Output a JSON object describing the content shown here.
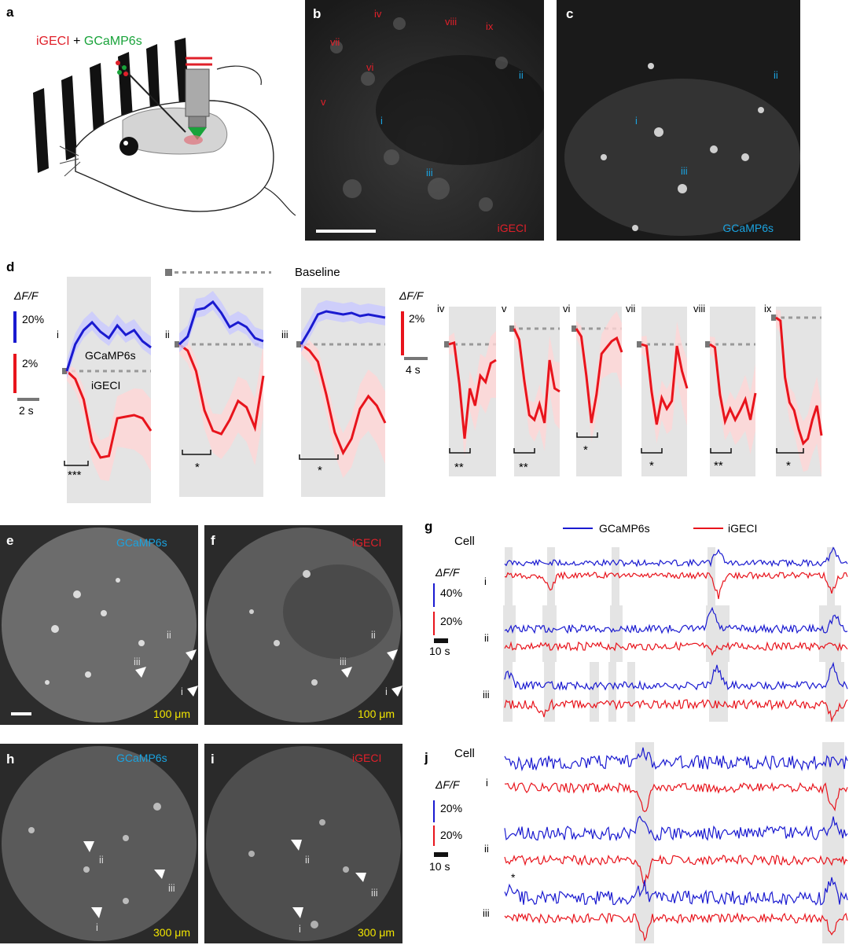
{
  "panel_letters": {
    "a": "a",
    "b": "b",
    "c": "c",
    "d": "d",
    "e": "e",
    "f": "f",
    "g": "g",
    "h": "h",
    "i": "i",
    "j": "j"
  },
  "panel_a": {
    "label_red": "iGECI",
    "label_plus": " + ",
    "label_green": "GCaMP6s"
  },
  "panel_b": {
    "channel": "iGECI",
    "red_markers": [
      "iv",
      "vii",
      "vi",
      "v",
      "viii",
      "ix"
    ],
    "blue_markers": [
      "ii",
      "i",
      "iii"
    ]
  },
  "panel_c": {
    "channel": "GCaMP6s",
    "markers": [
      "ii",
      "i",
      "iii"
    ]
  },
  "panel_d": {
    "dff_label": "ΔF/F",
    "baseline_label": "Baseline",
    "left_scale": {
      "blue": "20%",
      "red": "2%",
      "time": "2 s"
    },
    "right_scale": {
      "red": "2%",
      "time": "4 s"
    },
    "gcamp_label": "GCaMP6s",
    "igeci_label": "iGECI",
    "cells_left": [
      {
        "id": "i",
        "sig": "***"
      },
      {
        "id": "ii",
        "sig": "*"
      },
      {
        "id": "iii",
        "sig": "*"
      }
    ],
    "cells_right": [
      {
        "id": "iv",
        "sig": "**"
      },
      {
        "id": "v",
        "sig": "**"
      },
      {
        "id": "vi",
        "sig": "*"
      },
      {
        "id": "vii",
        "sig": "*"
      },
      {
        "id": "viii",
        "sig": "**"
      },
      {
        "id": "ix",
        "sig": "*"
      }
    ]
  },
  "panel_e": {
    "channel": "GCaMP6s",
    "depth": "100 μm",
    "markers": [
      "ii",
      "iii",
      "i"
    ]
  },
  "panel_f": {
    "channel": "iGECI",
    "depth": "100 μm",
    "markers": [
      "ii",
      "iii",
      "i"
    ]
  },
  "panel_h": {
    "channel": "GCaMP6s",
    "depth": "300 μm",
    "markers": [
      "ii",
      "iii",
      "i"
    ]
  },
  "panel_i": {
    "channel": "iGECI",
    "depth": "300 μm",
    "markers": [
      "ii",
      "iii",
      "i"
    ]
  },
  "panel_g": {
    "legend_blue": "GCaMP6s",
    "legend_red": "iGECI",
    "cell_label": "Cell",
    "dff_label": "ΔF/F",
    "scale_blue": "40%",
    "scale_red": "20%",
    "scale_time": "10 s",
    "rows": [
      "i",
      "ii",
      "iii"
    ]
  },
  "panel_j": {
    "cell_label": "Cell",
    "dff_label": "ΔF/F",
    "scale_blue": "20%",
    "scale_red": "20%",
    "scale_time": "10 s",
    "rows": [
      "i",
      "ii",
      "iii"
    ],
    "star": "*"
  },
  "colors": {
    "gcamp": "#1a1ad0",
    "igeci": "#e8141c",
    "shade": "#e4e4e4"
  }
}
